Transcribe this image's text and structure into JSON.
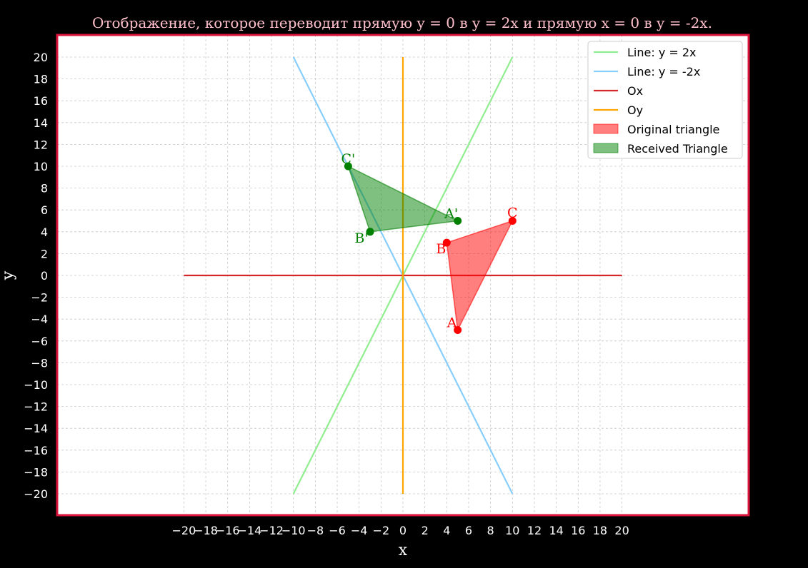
{
  "chart_data": {
    "type": "line",
    "title": "Отображение, которое переводит прямую y = 0 в y = 2x и прямую x = 0 в y = -2x.",
    "xlabel": "x",
    "ylabel": "y",
    "xlim": [
      -20,
      20
    ],
    "ylim": [
      -20,
      20
    ],
    "grid": true,
    "legend_position": "top-right",
    "xticks": [
      -20,
      -18,
      -16,
      -14,
      -12,
      -10,
      -8,
      -6,
      -4,
      -2,
      0,
      2,
      4,
      6,
      8,
      10,
      12,
      14,
      16,
      18,
      20
    ],
    "yticks": [
      -20,
      -18,
      -16,
      -14,
      -12,
      -10,
      -8,
      -6,
      -4,
      -2,
      0,
      2,
      4,
      6,
      8,
      10,
      12,
      14,
      16,
      18,
      20
    ],
    "lines": [
      {
        "name": "Line: y = 2x",
        "color": "#90ee90",
        "x": [
          -10,
          10
        ],
        "y": [
          -20,
          20
        ]
      },
      {
        "name": "Line: y = -2x",
        "color": "#87cefa",
        "x": [
          -10,
          10
        ],
        "y": [
          20,
          -20
        ]
      },
      {
        "name": "Ox",
        "color": "#d62728",
        "x": [
          -20,
          20
        ],
        "y": [
          0,
          0
        ]
      },
      {
        "name": "Oy",
        "color": "#ffa500",
        "x": [
          0,
          0
        ],
        "y": [
          -20,
          20
        ]
      }
    ],
    "polygons": [
      {
        "name": "Original triangle",
        "fill": "#ff0000",
        "points": [
          [
            5,
            -5
          ],
          [
            4,
            3
          ],
          [
            10,
            5
          ]
        ],
        "point_labels": [
          "A",
          "B",
          "C"
        ]
      },
      {
        "name": "Received Triangle",
        "fill": "#008000",
        "points": [
          [
            5,
            5
          ],
          [
            -3,
            4
          ],
          [
            -5,
            10
          ]
        ],
        "point_labels": [
          "A'",
          "B'",
          "C'"
        ]
      }
    ]
  },
  "colors": {
    "background": "#000000",
    "plot_background": "#ffffff",
    "frame": "#dc143c",
    "title": "#ffc0cb",
    "grid": "#c8c8c8"
  }
}
